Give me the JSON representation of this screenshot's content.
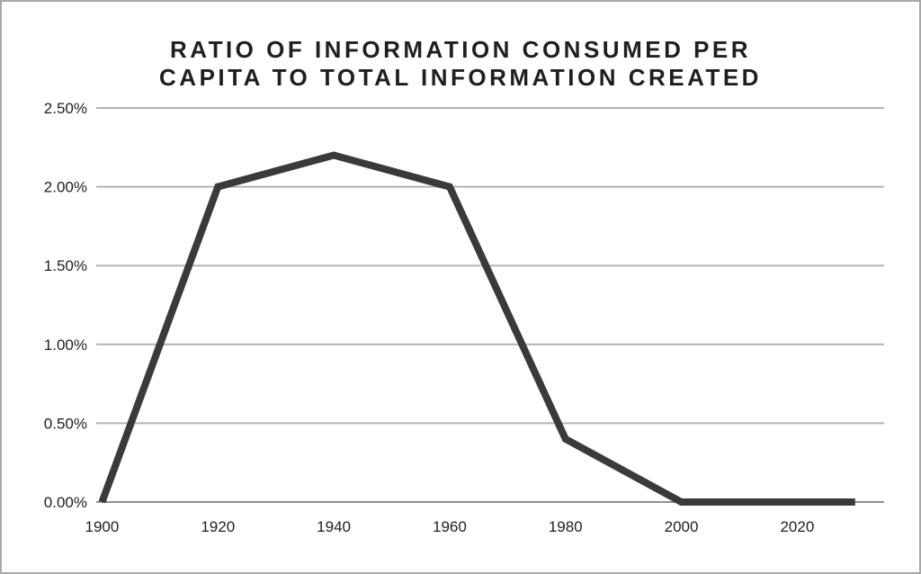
{
  "window": {
    "background": "#ffffff",
    "border_color": "#a9a9a9"
  },
  "chart_data": {
    "type": "line",
    "title": "RATIO OF INFORMATION CONSUMED PER CAPITA TO TOTAL INFORMATION CREATED",
    "title_lines": [
      "RATIO OF INFORMATION CONSUMED PER",
      "CAPITA TO TOTAL INFORMATION CREATED"
    ],
    "x": [
      1900,
      1920,
      1940,
      1960,
      1980,
      2000,
      2030
    ],
    "values": [
      0.0,
      2.0,
      2.2,
      2.0,
      0.4,
      0.0,
      0.0
    ],
    "x_ticks": [
      1900,
      1920,
      1940,
      1960,
      1980,
      2000,
      2020
    ],
    "x_tick_labels": [
      "1900",
      "1920",
      "1940",
      "1960",
      "1980",
      "2000",
      "2020"
    ],
    "y_ticks": [
      0.0,
      0.5,
      1.0,
      1.5,
      2.0,
      2.5
    ],
    "y_tick_labels": [
      "0.00%",
      "0.50%",
      "1.00%",
      "1.50%",
      "2.00%",
      "2.50%"
    ],
    "xlim": [
      1899,
      2035
    ],
    "ylim": [
      0,
      2.5
    ],
    "xlabel": "",
    "ylabel": "",
    "grid": true,
    "legend": "none",
    "line_color": "#3a3a3a",
    "line_width": 8,
    "grid_color": "#b3b3b3",
    "axis_color": "#8f8f8f",
    "text_color": "#1f1f1f"
  }
}
